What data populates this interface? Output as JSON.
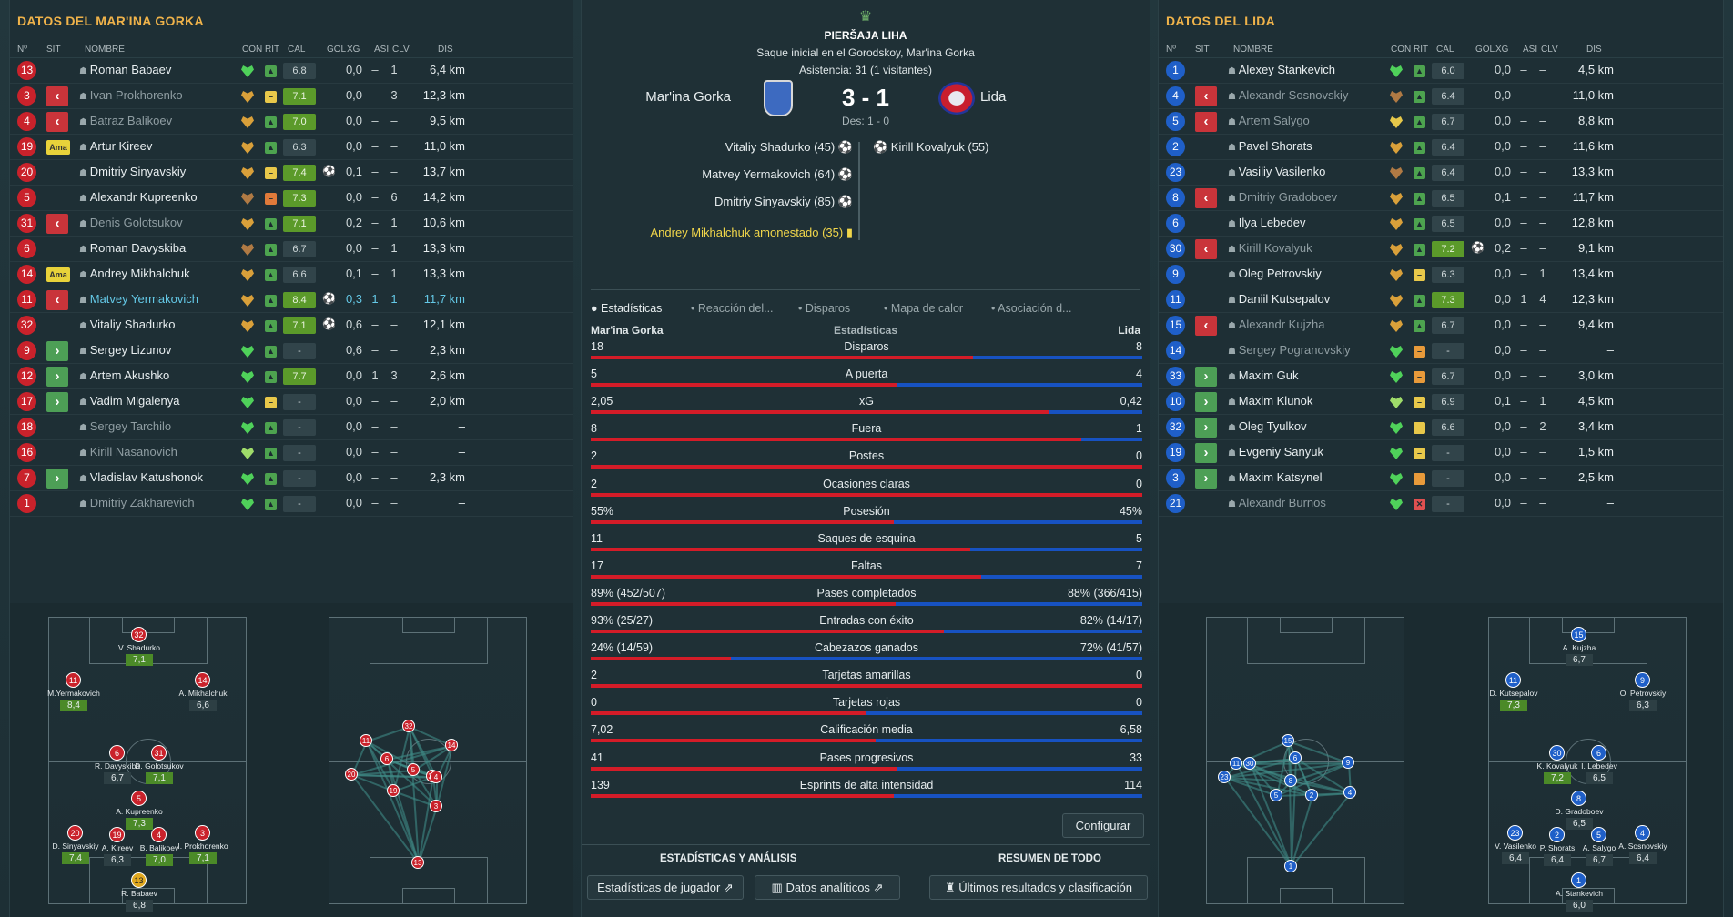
{
  "left": {
    "title": "DATOS DEL MAR'INA GORKA",
    "headers": [
      "Nº",
      "SIT",
      "NOMBRE",
      "CON",
      "RIT",
      "CAL",
      "GOL",
      "XG",
      "ASI",
      "CLV",
      "DIS"
    ],
    "players": [
      {
        "n": "13",
        "sit": "",
        "name": "Roman Babaev",
        "cal": "6.8",
        "g": false,
        "gol": "",
        "xg": "0,0",
        "asi": "–",
        "clv": "1",
        "dis": "6,4 km",
        "st": "n",
        "rit": "#4da34f",
        "con": "#4fd15a"
      },
      {
        "n": "3",
        "sit": "out",
        "name": "Ivan Prokhorenko",
        "cal": "7.1",
        "g": true,
        "gol": "",
        "xg": "0,0",
        "asi": "–",
        "clv": "3",
        "dis": "12,3 km",
        "st": "dim",
        "rit": "#e8c84a",
        "con": "#d9a03a"
      },
      {
        "n": "4",
        "sit": "out",
        "name": "Batraz Balikoev",
        "cal": "7.0",
        "g": true,
        "gol": "",
        "xg": "0,0",
        "asi": "–",
        "clv": "–",
        "dis": "9,5 km",
        "st": "dim",
        "rit": "#4da34f",
        "con": "#d9a03a"
      },
      {
        "n": "19",
        "sit": "yc",
        "name": "Artur Kireev",
        "cal": "6.3",
        "g": false,
        "gol": "",
        "xg": "0,0",
        "asi": "–",
        "clv": "–",
        "dis": "11,0 km",
        "st": "n",
        "rit": "#4da34f",
        "con": "#d9a03a"
      },
      {
        "n": "20",
        "sit": "",
        "name": "Dmitriy Sinyavskiy",
        "cal": "7.4",
        "g": true,
        "gol": "⚽",
        "xg": "0,1",
        "asi": "–",
        "clv": "–",
        "dis": "13,7 km",
        "st": "n",
        "rit": "#e8c84a",
        "con": "#d9a03a"
      },
      {
        "n": "5",
        "sit": "",
        "name": "Alexandr Kupreenko",
        "cal": "7.3",
        "g": true,
        "gol": "",
        "xg": "0,0",
        "asi": "–",
        "clv": "6",
        "dis": "14,2 km",
        "st": "n",
        "rit": "#e07a3a",
        "con": "#b07a44"
      },
      {
        "n": "31",
        "sit": "out",
        "name": "Denis Golotsukov",
        "cal": "7.1",
        "g": true,
        "gol": "",
        "xg": "0,2",
        "asi": "–",
        "clv": "1",
        "dis": "10,6 km",
        "st": "dim",
        "rit": "#4da34f",
        "con": "#d9a03a"
      },
      {
        "n": "6",
        "sit": "",
        "name": "Roman Davyskiba",
        "cal": "6.7",
        "g": false,
        "gol": "",
        "xg": "0,0",
        "asi": "–",
        "clv": "1",
        "dis": "13,3 km",
        "st": "n",
        "rit": "#4da34f",
        "con": "#b07a44"
      },
      {
        "n": "14",
        "sit": "yc",
        "name": "Andrey Mikhalchuk",
        "cal": "6.6",
        "g": false,
        "gol": "",
        "xg": "0,1",
        "asi": "–",
        "clv": "1",
        "dis": "13,3 km",
        "st": "n",
        "rit": "#4da34f",
        "con": "#d9a03a"
      },
      {
        "n": "11",
        "sit": "out",
        "name": "Matvey Yermakovich",
        "cal": "8.4",
        "g": true,
        "gol": "⚽",
        "xg": "0,3",
        "asi": "1",
        "clv": "1",
        "dis": "11,7 km",
        "st": "sel",
        "rit": "#4da34f",
        "con": "#d9a03a"
      },
      {
        "n": "32",
        "sit": "",
        "name": "Vitaliy Shadurko",
        "cal": "7.1",
        "g": true,
        "gol": "⚽",
        "xg": "0,6",
        "asi": "–",
        "clv": "–",
        "dis": "12,1 km",
        "st": "n",
        "rit": "#4da34f",
        "con": "#d9a03a"
      },
      {
        "n": "9",
        "sit": "in",
        "name": "Sergey Lizunov",
        "cal": "-",
        "g": false,
        "gol": "",
        "xg": "0,6",
        "asi": "–",
        "clv": "–",
        "dis": "2,3 km",
        "st": "n",
        "rit": "#4da34f",
        "con": "#4fd15a"
      },
      {
        "n": "12",
        "sit": "in",
        "name": "Artem Akushko",
        "cal": "7.7",
        "g": true,
        "gol": "",
        "xg": "0,0",
        "asi": "1",
        "clv": "3",
        "dis": "2,6 km",
        "st": "n",
        "rit": "#4da34f",
        "con": "#4fd15a"
      },
      {
        "n": "17",
        "sit": "in",
        "name": "Vadim Migalenya",
        "cal": "-",
        "g": false,
        "gol": "",
        "xg": "0,0",
        "asi": "–",
        "clv": "–",
        "dis": "2,0 km",
        "st": "n",
        "rit": "#e8c84a",
        "con": "#4fd15a"
      },
      {
        "n": "18",
        "sit": "",
        "name": "Sergey Tarchilo",
        "cal": "-",
        "g": false,
        "gol": "",
        "xg": "0,0",
        "asi": "–",
        "clv": "–",
        "dis": "–",
        "st": "dim",
        "rit": "#4da34f",
        "con": "#4fd15a"
      },
      {
        "n": "16",
        "sit": "",
        "name": "Kirill Nasanovich",
        "cal": "-",
        "g": false,
        "gol": "",
        "xg": "0,0",
        "asi": "–",
        "clv": "–",
        "dis": "–",
        "st": "dim",
        "rit": "#4da34f",
        "con": "#9fdc6a"
      },
      {
        "n": "7",
        "sit": "in",
        "name": "Vladislav Katushonok",
        "cal": "-",
        "g": false,
        "gol": "",
        "xg": "0,0",
        "asi": "–",
        "clv": "–",
        "dis": "2,3 km",
        "st": "n",
        "rit": "#4da34f",
        "con": "#4fd15a"
      },
      {
        "n": "1",
        "sit": "",
        "name": "Dmitriy Zakharevich",
        "cal": "-",
        "g": false,
        "gol": "",
        "xg": "0,0",
        "asi": "–",
        "clv": "–",
        "dis": "–",
        "st": "dim",
        "rit": "#4da34f",
        "con": "#4fd15a"
      }
    ]
  },
  "right": {
    "title": "DATOS DEL LIDA",
    "headers": [
      "Nº",
      "SIT",
      "NOMBRE",
      "CON",
      "RIT",
      "CAL",
      "GOL",
      "XG",
      "ASI",
      "CLV",
      "DIS"
    ],
    "players": [
      {
        "n": "1",
        "sit": "",
        "name": "Alexey Stankevich",
        "cal": "6.0",
        "g": false,
        "gol": "",
        "xg": "0,0",
        "asi": "–",
        "clv": "–",
        "dis": "4,5 km",
        "st": "n",
        "rit": "#4da34f",
        "con": "#4fd15a"
      },
      {
        "n": "4",
        "sit": "out",
        "name": "Alexandr Sosnovskiy",
        "cal": "6.4",
        "g": false,
        "gol": "",
        "xg": "0,0",
        "asi": "–",
        "clv": "–",
        "dis": "11,0 km",
        "st": "dim",
        "rit": "#4da34f",
        "con": "#b07a44"
      },
      {
        "n": "5",
        "sit": "out",
        "name": "Artem Salygo",
        "cal": "6.7",
        "g": false,
        "gol": "",
        "xg": "0,0",
        "asi": "–",
        "clv": "–",
        "dis": "8,8 km",
        "st": "dim",
        "rit": "#4da34f",
        "con": "#e6c84a"
      },
      {
        "n": "2",
        "sit": "",
        "name": "Pavel Shorats",
        "cal": "6.4",
        "g": false,
        "gol": "",
        "xg": "0,0",
        "asi": "–",
        "clv": "–",
        "dis": "11,6 km",
        "st": "n",
        "rit": "#4da34f",
        "con": "#d9a03a"
      },
      {
        "n": "23",
        "sit": "",
        "name": "Vasiliy Vasilenko",
        "cal": "6.4",
        "g": false,
        "gol": "",
        "xg": "0,0",
        "asi": "–",
        "clv": "–",
        "dis": "13,3 km",
        "st": "n",
        "rit": "#4da34f",
        "con": "#b07a44"
      },
      {
        "n": "8",
        "sit": "out",
        "name": "Dmitriy Gradoboev",
        "cal": "6.5",
        "g": false,
        "gol": "",
        "xg": "0,1",
        "asi": "–",
        "clv": "–",
        "dis": "11,7 km",
        "st": "dim",
        "rit": "#4da34f",
        "con": "#d9a03a"
      },
      {
        "n": "6",
        "sit": "",
        "name": "Ilya Lebedev",
        "cal": "6.5",
        "g": false,
        "gol": "",
        "xg": "0,0",
        "asi": "–",
        "clv": "–",
        "dis": "12,8 km",
        "st": "n",
        "rit": "#4da34f",
        "con": "#d9a03a"
      },
      {
        "n": "30",
        "sit": "out",
        "name": "Kirill Kovalyuk",
        "cal": "7.2",
        "g": true,
        "gol": "⚽",
        "xg": "0,2",
        "asi": "–",
        "clv": "–",
        "dis": "9,1 km",
        "st": "dim",
        "rit": "#4da34f",
        "con": "#d9a03a"
      },
      {
        "n": "9",
        "sit": "",
        "name": "Oleg Petrovskiy",
        "cal": "6.3",
        "g": false,
        "gol": "",
        "xg": "0,0",
        "asi": "–",
        "clv": "1",
        "dis": "13,4 km",
        "st": "n",
        "rit": "#e8c84a",
        "con": "#d9a03a"
      },
      {
        "n": "11",
        "sit": "",
        "name": "Daniil Kutsepalov",
        "cal": "7.3",
        "g": true,
        "gol": "",
        "xg": "0,0",
        "asi": "1",
        "clv": "4",
        "dis": "12,3 km",
        "st": "n",
        "rit": "#4da34f",
        "con": "#d9a03a"
      },
      {
        "n": "15",
        "sit": "out",
        "name": "Alexandr Kujzha",
        "cal": "6.7",
        "g": false,
        "gol": "",
        "xg": "0,0",
        "asi": "–",
        "clv": "–",
        "dis": "9,4 km",
        "st": "dim",
        "rit": "#4da34f",
        "con": "#d9a03a"
      },
      {
        "n": "14",
        "sit": "",
        "name": "Sergey Pogranovskiy",
        "cal": "-",
        "g": false,
        "gol": "",
        "xg": "0,0",
        "asi": "–",
        "clv": "–",
        "dis": "–",
        "st": "dim",
        "rit": "#e89a3a",
        "con": "#4fd15a"
      },
      {
        "n": "33",
        "sit": "in",
        "name": "Maxim Guk",
        "cal": "6.7",
        "g": false,
        "gol": "",
        "xg": "0,0",
        "asi": "–",
        "clv": "–",
        "dis": "3,0 km",
        "st": "n",
        "rit": "#e89a3a",
        "con": "#4fd15a"
      },
      {
        "n": "10",
        "sit": "in",
        "name": "Maxim Klunok",
        "cal": "6.9",
        "g": false,
        "gol": "",
        "xg": "0,1",
        "asi": "–",
        "clv": "1",
        "dis": "4,5 km",
        "st": "n",
        "rit": "#e8c84a",
        "con": "#9fdc6a"
      },
      {
        "n": "32",
        "sit": "in",
        "name": "Oleg Tyulkov",
        "cal": "6.6",
        "g": false,
        "gol": "",
        "xg": "0,0",
        "asi": "–",
        "clv": "2",
        "dis": "3,4 km",
        "st": "n",
        "rit": "#e8c84a",
        "con": "#4fd15a"
      },
      {
        "n": "19",
        "sit": "in",
        "name": "Evgeniy Sanyuk",
        "cal": "-",
        "g": false,
        "gol": "",
        "xg": "0,0",
        "asi": "–",
        "clv": "–",
        "dis": "1,5 km",
        "st": "n",
        "rit": "#e8c84a",
        "con": "#4fd15a"
      },
      {
        "n": "3",
        "sit": "in",
        "name": "Maxim Katsynel",
        "cal": "-",
        "g": false,
        "gol": "",
        "xg": "0,0",
        "asi": "–",
        "clv": "–",
        "dis": "2,5 km",
        "st": "n",
        "rit": "#e89a3a",
        "con": "#4fd15a"
      },
      {
        "n": "21",
        "sit": "",
        "name": "Alexandr Burnos",
        "cal": "-",
        "g": false,
        "gol": "",
        "xg": "0,0",
        "asi": "–",
        "clv": "–",
        "dis": "–",
        "st": "dim",
        "rit": "#e05050",
        "con": "#4fd15a"
      }
    ]
  },
  "center": {
    "competition": "PIERŠAJA LIHA",
    "kickoff": "Saque inicial en el Gorodskoy, Mar'ina Gorka",
    "attendance": "Asistencia: 31 (1 visitantes)",
    "home": "Mar'ina Gorka",
    "away": "Lida",
    "score": "3 - 1",
    "halftime": "Des: 1 - 0",
    "home_events": [
      "Vitaliy Shadurko (45)",
      "Matvey Yermakovich (64)",
      "Dmitriy Sinyavskiy (85)"
    ],
    "home_card": "Andrey Mikhalchuk amonestado (35)",
    "away_events": [
      "Kirill Kovalyuk (55)"
    ],
    "tabs": [
      "Estadísticas",
      "Reacción del...",
      "Disparos",
      "Mapa de calor",
      "Asociación d..."
    ],
    "stats_header": "Estadísticas",
    "stats": [
      {
        "label": "Disparos",
        "h": "18",
        "a": "8",
        "hn": 18,
        "an": 8
      },
      {
        "label": "A puerta",
        "h": "5",
        "a": "4",
        "hn": 5,
        "an": 4
      },
      {
        "label": "xG",
        "h": "2,05",
        "a": "0,42",
        "hn": 2.05,
        "an": 0.42
      },
      {
        "label": "Fuera",
        "h": "8",
        "a": "1",
        "hn": 8,
        "an": 1
      },
      {
        "label": "Postes",
        "h": "2",
        "a": "0",
        "hn": 2,
        "an": 0
      },
      {
        "label": "Ocasiones claras",
        "h": "2",
        "a": "0",
        "hn": 2,
        "an": 0
      },
      {
        "label": "Posesión",
        "h": "55%",
        "a": "45%",
        "hn": 55,
        "an": 45
      },
      {
        "label": "Saques de esquina",
        "h": "11",
        "a": "5",
        "hn": 11,
        "an": 5
      },
      {
        "label": "Faltas",
        "h": "17",
        "a": "7",
        "hn": 17,
        "an": 7
      },
      {
        "label": "Pases completados",
        "h": "89% (452/507)",
        "a": "88% (366/415)",
        "hn": 452,
        "an": 366
      },
      {
        "label": "Entradas con éxito",
        "h": "93% (25/27)",
        "a": "82% (14/17)",
        "hn": 25,
        "an": 14
      },
      {
        "label": "Cabezazos ganados",
        "h": "24% (14/59)",
        "a": "72% (41/57)",
        "hn": 14,
        "an": 41
      },
      {
        "label": "Tarjetas amarillas",
        "h": "2",
        "a": "0",
        "hn": 2,
        "an": 0
      },
      {
        "label": "Tarjetas rojas",
        "h": "0",
        "a": "0",
        "hn": 0,
        "an": 0
      },
      {
        "label": "Calificación media",
        "h": "7,02",
        "a": "6,58",
        "hn": 7.02,
        "an": 6.58
      },
      {
        "label": "Pases progresivos",
        "h": "41",
        "a": "33",
        "hn": 41,
        "an": 33
      },
      {
        "label": "Esprints de alta intensidad",
        "h": "139",
        "a": "114",
        "hn": 139,
        "an": 114
      }
    ],
    "configure": "Configurar",
    "section_left": "ESTADÍSTICAS Y ANÁLISIS",
    "section_right": "RESUMEN DE TODO",
    "btn_players": "Estadísticas de jugador",
    "btn_analytics": "Datos analíticos",
    "btn_results": "Últimos resultados y clasificación"
  },
  "left_formation": [
    {
      "n": "32",
      "name": "V. Shadurko",
      "r": "7,1",
      "g": true
    },
    {
      "n": "11",
      "name": "M.Yermakovich",
      "r": "8,4",
      "g": true
    },
    {
      "n": "14",
      "name": "A. Mikhalchuk",
      "r": "6,6",
      "g": false
    },
    {
      "n": "6",
      "name": "R. Davyskiba",
      "r": "6,7",
      "g": false
    },
    {
      "n": "31",
      "name": "D. Golotsukov",
      "r": "7,1",
      "g": true
    },
    {
      "n": "5",
      "name": "A. Kupreenko",
      "r": "7,3",
      "g": true
    },
    {
      "n": "20",
      "name": "D. Sinyavskiy",
      "r": "7,4",
      "g": true
    },
    {
      "n": "19",
      "name": "A. Kireev",
      "r": "6,3",
      "g": false
    },
    {
      "n": "4",
      "name": "B. Balikoev",
      "r": "7,0",
      "g": true
    },
    {
      "n": "3",
      "name": "I. Prokhorenko",
      "r": "7,1",
      "g": true
    },
    {
      "n": "13",
      "name": "R. Babaev",
      "r": "6,8",
      "g": false
    }
  ],
  "right_formation": [
    {
      "n": "15",
      "name": "A. Kujzha",
      "r": "6,7",
      "g": false
    },
    {
      "n": "11",
      "name": "D. Kutsepalov",
      "r": "7,3",
      "g": true
    },
    {
      "n": "9",
      "name": "O. Petrovskiy",
      "r": "6,3",
      "g": false
    },
    {
      "n": "30",
      "name": "K. Kovalyuk",
      "r": "7,2",
      "g": true
    },
    {
      "n": "6",
      "name": "I. Lebedev",
      "r": "6,5",
      "g": false
    },
    {
      "n": "8",
      "name": "D. Gradoboev",
      "r": "6,5",
      "g": false
    },
    {
      "n": "23",
      "name": "V. Vasilenko",
      "r": "6,4",
      "g": false
    },
    {
      "n": "2",
      "name": "P. Shorats",
      "r": "6,4",
      "g": false
    },
    {
      "n": "5",
      "name": "A. Salygo",
      "r": "6,7",
      "g": false
    },
    {
      "n": "4",
      "name": "A. Sosnovskiy",
      "r": "6,4",
      "g": false
    },
    {
      "n": "1",
      "name": "A. Stankevich",
      "r": "6,0",
      "g": false
    }
  ],
  "colors": {
    "accent": "#f0b34a",
    "home": "#d41c28",
    "away": "#1752c2",
    "good": "#5b9a2a"
  }
}
